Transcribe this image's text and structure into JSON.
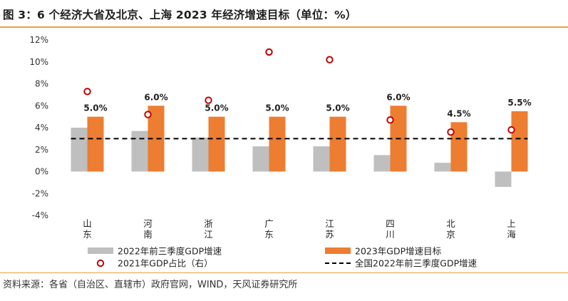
{
  "title": "图 3：6 个经济大省及北京、上海 2023 年经济增速目标（单位：%）",
  "source": "资料来源：各省（自治区、直辖市）政府官网，WIND，天风证券研究所",
  "colors": {
    "accent_rule": "#e8a23c",
    "gray_bar": "#bfbfbf",
    "orange_bar": "#ed7d31",
    "marker_stroke": "#c00000",
    "baseline_line": "#000000"
  },
  "chart_data": {
    "type": "bar",
    "categories": [
      "山东",
      "河南",
      "浙江",
      "广东",
      "江苏",
      "四川",
      "北京",
      "上海"
    ],
    "ylim": [
      -4,
      12
    ],
    "yticks": [
      -4,
      -2,
      0,
      2,
      4,
      6,
      8,
      10,
      12
    ],
    "ytick_labels": [
      "-4%",
      "-2%",
      "0%",
      "2%",
      "4%",
      "6%",
      "8%",
      "10%",
      "12%"
    ],
    "grid": false,
    "legend_position": "bottom",
    "series": [
      {
        "name": "2022年前三季度GDP增速",
        "kind": "bar",
        "color": "#bfbfbf",
        "values": [
          4.0,
          3.7,
          3.1,
          2.3,
          2.3,
          1.5,
          0.8,
          -1.4
        ]
      },
      {
        "name": "2023年GDP增速目标",
        "kind": "bar",
        "color": "#ed7d31",
        "values": [
          5.0,
          6.0,
          5.0,
          5.0,
          5.0,
          6.0,
          4.5,
          5.5
        ],
        "data_labels": [
          "5.0%",
          "6.0%",
          "5.0%",
          "5.0%",
          "5.0%",
          "6.0%",
          "4.5%",
          "5.5%"
        ]
      },
      {
        "name": "2021年GDP占比（右）",
        "kind": "marker",
        "color": "#c00000",
        "values": [
          7.3,
          5.2,
          6.5,
          10.9,
          10.2,
          4.7,
          3.6,
          3.8
        ]
      },
      {
        "name": "全国2022年前三季度GDP增速",
        "kind": "dashed-line",
        "color": "#000000",
        "value": 3.0
      }
    ]
  }
}
